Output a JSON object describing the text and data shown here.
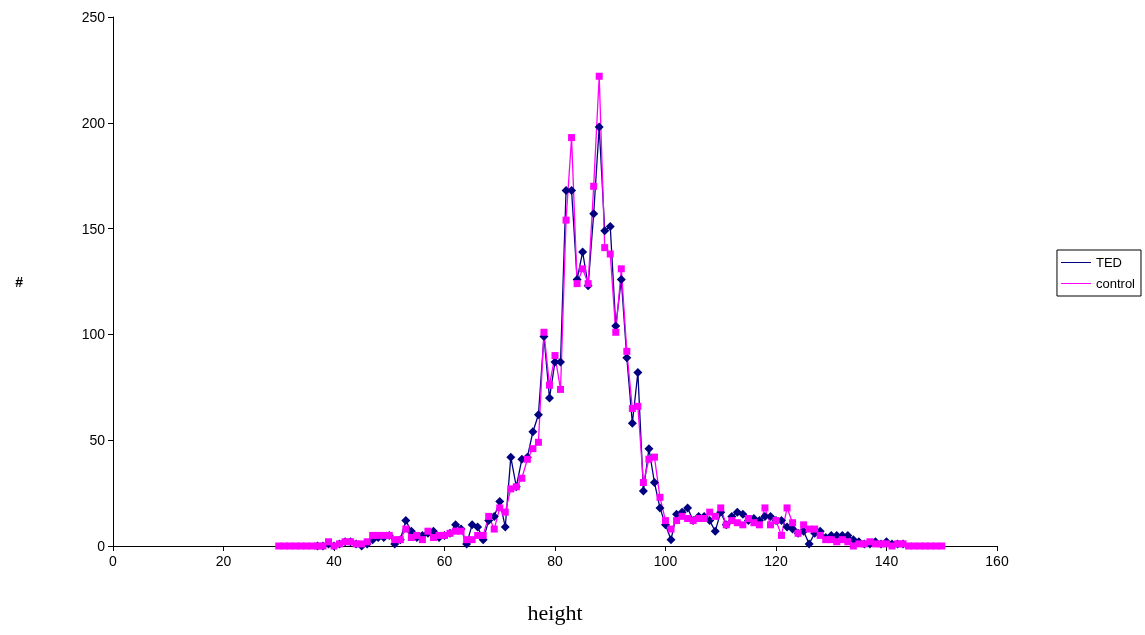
{
  "chart_data": {
    "type": "line",
    "xlabel": "height",
    "ylabel": "#",
    "x": [
      30,
      31,
      32,
      33,
      34,
      35,
      36,
      37,
      38,
      39,
      40,
      41,
      42,
      43,
      44,
      45,
      46,
      47,
      48,
      49,
      50,
      51,
      52,
      53,
      54,
      55,
      56,
      57,
      58,
      59,
      60,
      61,
      62,
      63,
      64,
      65,
      66,
      67,
      68,
      69,
      70,
      71,
      72,
      73,
      74,
      75,
      76,
      77,
      78,
      79,
      80,
      81,
      82,
      83,
      84,
      85,
      86,
      87,
      88,
      89,
      90,
      91,
      92,
      93,
      94,
      95,
      96,
      97,
      98,
      99,
      100,
      101,
      102,
      103,
      104,
      105,
      106,
      107,
      108,
      109,
      110,
      111,
      112,
      113,
      114,
      115,
      116,
      117,
      118,
      119,
      120,
      121,
      122,
      123,
      124,
      125,
      126,
      127,
      128,
      129,
      130,
      131,
      132,
      133,
      134,
      135,
      136,
      137,
      138,
      139,
      140,
      141,
      142,
      143,
      144,
      145,
      146,
      147,
      148,
      149,
      150
    ],
    "series": [
      {
        "name": "TED",
        "color": "#000080",
        "marker": "diamond",
        "values": [
          null,
          null,
          null,
          null,
          null,
          null,
          null,
          0,
          0,
          1,
          0,
          1,
          2,
          2,
          1,
          0,
          1,
          3,
          4,
          4,
          5,
          1,
          3,
          12,
          7,
          4,
          5,
          6,
          7,
          4,
          5,
          6,
          10,
          8,
          1,
          10,
          9,
          3,
          12,
          14,
          21,
          9,
          42,
          28,
          41,
          42,
          54,
          62,
          99,
          70,
          87,
          87,
          168,
          168,
          126,
          139,
          123,
          157,
          198,
          149,
          151,
          104,
          126,
          89,
          58,
          82,
          26,
          46,
          30,
          18,
          10,
          3,
          15,
          16,
          18,
          12,
          14,
          14,
          12,
          7,
          16,
          10,
          14,
          16,
          15,
          12,
          13,
          12,
          14,
          14,
          12,
          12,
          9,
          8,
          6,
          7,
          1,
          6,
          7,
          4,
          5,
          5,
          5,
          5,
          3,
          2,
          1,
          1,
          2,
          1,
          2,
          1,
          1,
          1,
          null,
          null,
          null,
          null,
          null,
          null,
          null
        ]
      },
      {
        "name": "control",
        "color": "#ff00ff",
        "marker": "square",
        "values": [
          0,
          0,
          0,
          0,
          0,
          0,
          0,
          0,
          0,
          2,
          0,
          1,
          2,
          2,
          1,
          1,
          2,
          5,
          5,
          5,
          5,
          3,
          3,
          8,
          4,
          5,
          3,
          7,
          4,
          5,
          5,
          6,
          7,
          7,
          3,
          3,
          5,
          5,
          14,
          8,
          18,
          16,
          27,
          28,
          32,
          41,
          46,
          49,
          101,
          76,
          90,
          74,
          154,
          193,
          124,
          131,
          124,
          170,
          222,
          141,
          138,
          101,
          131,
          92,
          65,
          66,
          30,
          41,
          42,
          23,
          12,
          8,
          12,
          14,
          13,
          12,
          13,
          13,
          16,
          14,
          18,
          10,
          12,
          11,
          10,
          13,
          11,
          10,
          18,
          10,
          12,
          5,
          18,
          11,
          6,
          10,
          8,
          8,
          5,
          3,
          3,
          2,
          3,
          2,
          0,
          1,
          1,
          2,
          1,
          1,
          1,
          0,
          1,
          1,
          0,
          0,
          0,
          0,
          0,
          0,
          0
        ]
      }
    ],
    "xlim": [
      0,
      160
    ],
    "xticks": [
      0,
      20,
      40,
      60,
      80,
      100,
      120,
      140,
      160
    ],
    "ylim": [
      0,
      250
    ],
    "yticks": [
      0,
      50,
      100,
      150,
      200,
      250
    ],
    "grid": false,
    "legend": "right",
    "line_style": "solid"
  }
}
